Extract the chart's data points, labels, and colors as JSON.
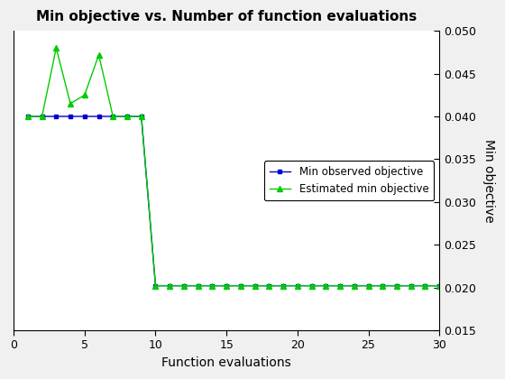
{
  "title": "Min objective vs. Number of function evaluations",
  "xlabel": "Function evaluations",
  "ylabel": "Min objective",
  "xlim": [
    0,
    30
  ],
  "ylim": [
    0.015,
    0.05
  ],
  "yticks": [
    0.015,
    0.02,
    0.025,
    0.03,
    0.035,
    0.04,
    0.045,
    0.05
  ],
  "xticks": [
    0,
    5,
    10,
    15,
    20,
    25,
    30
  ],
  "blue_x": [
    1,
    2,
    3,
    4,
    5,
    6,
    7,
    8,
    9,
    10,
    11,
    12,
    13,
    14,
    15,
    16,
    17,
    18,
    19,
    20,
    21,
    22,
    23,
    24,
    25,
    26,
    27,
    28,
    29,
    30
  ],
  "blue_y": [
    0.04,
    0.04,
    0.04,
    0.04,
    0.04,
    0.04,
    0.04,
    0.04,
    0.04,
    0.0202,
    0.0202,
    0.0202,
    0.0202,
    0.0202,
    0.0202,
    0.0202,
    0.0202,
    0.0202,
    0.0202,
    0.0202,
    0.0202,
    0.0202,
    0.0202,
    0.0202,
    0.0202,
    0.0202,
    0.0202,
    0.0202,
    0.0202,
    0.0202
  ],
  "green_x": [
    1,
    2,
    3,
    4,
    5,
    6,
    7,
    8,
    9,
    10,
    11,
    12,
    13,
    14,
    15,
    16,
    17,
    18,
    19,
    20,
    21,
    22,
    23,
    24,
    25,
    26,
    27,
    28,
    29,
    30
  ],
  "green_y": [
    0.04,
    0.04,
    0.048,
    0.0415,
    0.0425,
    0.0472,
    0.04,
    0.04,
    0.04,
    0.0202,
    0.0202,
    0.0202,
    0.0202,
    0.0202,
    0.0202,
    0.0202,
    0.0202,
    0.0202,
    0.0202,
    0.0202,
    0.0202,
    0.0202,
    0.0202,
    0.0202,
    0.0202,
    0.0202,
    0.0202,
    0.0202,
    0.0202,
    0.0202
  ],
  "blue_color": "#0000cd",
  "green_color": "#00cc00",
  "blue_label": "Min observed objective",
  "green_label": "Estimated min objective",
  "legend_loc": "center right",
  "figsize": [
    5.6,
    4.2
  ],
  "dpi": 100,
  "bg_color": "#f0f0f0"
}
